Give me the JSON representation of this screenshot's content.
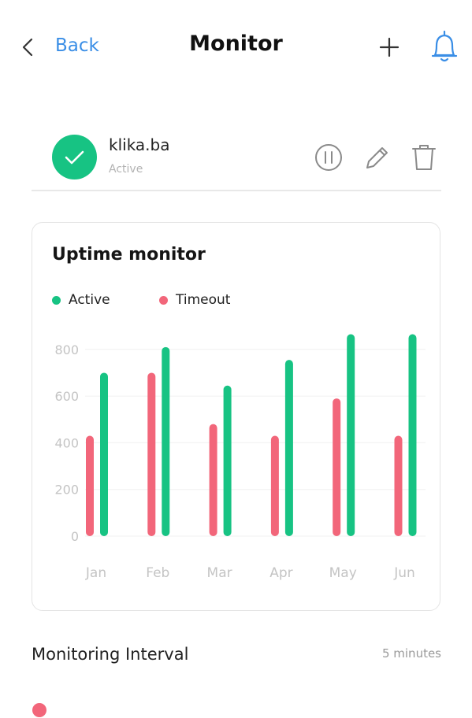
{
  "header": {
    "back_label": "Back",
    "title": "Monitor",
    "icons": [
      "chevron-left-icon",
      "plus-icon",
      "bell-icon"
    ]
  },
  "monitor": {
    "name": "klika.ba",
    "status": "Active",
    "status_icon": "check-icon",
    "actions": [
      "pause-icon",
      "pencil-icon",
      "trash-icon"
    ]
  },
  "colors": {
    "active": "#17c383",
    "timeout": "#f2667a",
    "link": "#3a8ee6"
  },
  "chart_data": {
    "type": "bar",
    "title": "Uptime monitor",
    "categories": [
      "Jan",
      "Feb",
      "Mar",
      "Apr",
      "May",
      "Jun"
    ],
    "series": [
      {
        "name": "Timeout",
        "values": [
          430,
          700,
          480,
          430,
          590,
          430
        ]
      },
      {
        "name": "Active",
        "values": [
          700,
          810,
          645,
          755,
          865,
          865
        ]
      }
    ],
    "yticks": [
      "0",
      "200",
      "400",
      "600",
      "800"
    ],
    "ylim": [
      0,
      900
    ],
    "grid": true,
    "legend_position": "top-left"
  },
  "interval": {
    "label": "Monitoring Interval",
    "value": "5 minutes"
  }
}
